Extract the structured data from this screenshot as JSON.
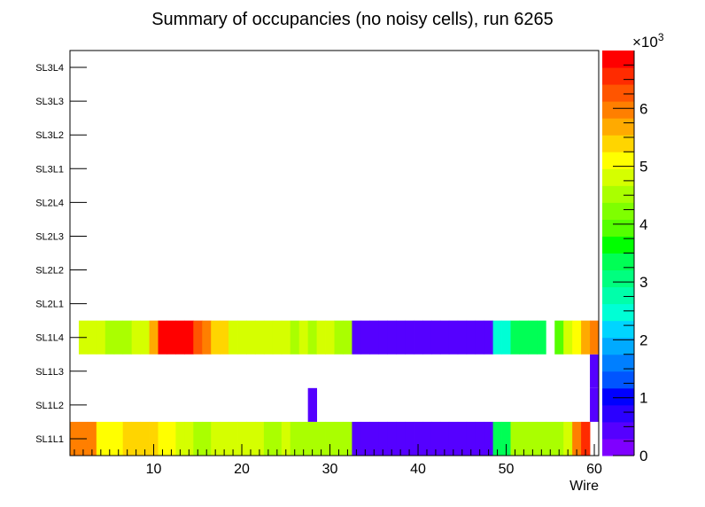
{
  "chart_data": {
    "type": "heatmap",
    "title": "Summary of occupancies (no noisy cells), run 6265",
    "xlabel": "Wire",
    "xlim": [
      0.5,
      60.5
    ],
    "x_ticks": [
      "10",
      "20",
      "30",
      "40",
      "50",
      "60"
    ],
    "rows": [
      "SL1L1",
      "SL1L2",
      "SL1L3",
      "SL1L4",
      "SL2L1",
      "SL2L2",
      "SL2L3",
      "SL2L4",
      "SL3L1",
      "SL3L2",
      "SL3L3",
      "SL3L4"
    ],
    "z_range": [
      0,
      7000
    ],
    "z_multiplier_label": "×10",
    "z_multiplier_exponent": "3",
    "z_ticks": [
      "0",
      "1",
      "2",
      "3",
      "4",
      "5",
      "6"
    ],
    "palette": [
      "#7f00ff",
      "#5500ff",
      "#2b00ff",
      "#0000ff",
      "#0055ff",
      "#007fff",
      "#00aaff",
      "#00d5ff",
      "#00ffd5",
      "#00ffaa",
      "#00ff7f",
      "#00ff55",
      "#00ff00",
      "#55ff00",
      "#7fff00",
      "#aaff00",
      "#d5ff00",
      "#ffff00",
      "#ffd500",
      "#ffaa00",
      "#ff7f00",
      "#ff5500",
      "#ff2b00",
      "#ff0000"
    ],
    "cells": {
      "SL1L1": [
        6050,
        6050,
        5900,
        5100,
        5100,
        5100,
        5350,
        5350,
        5350,
        5350,
        5100,
        5100,
        4900,
        4700,
        4450,
        4450,
        4700,
        4700,
        4700,
        4700,
        4700,
        4700,
        4450,
        4450,
        4700,
        4450,
        4450,
        4450,
        4450,
        4450,
        4450,
        4450,
        300,
        300,
        300,
        300,
        300,
        300,
        300,
        300,
        300,
        300,
        300,
        300,
        300,
        300,
        300,
        300,
        3450,
        3450,
        4450,
        4450,
        4450,
        4450,
        4450,
        4450,
        4700,
        6050,
        6600,
        null
      ],
      "SL1L2": [
        null,
        null,
        null,
        null,
        null,
        null,
        null,
        null,
        null,
        null,
        null,
        null,
        null,
        null,
        null,
        null,
        null,
        null,
        null,
        null,
        null,
        null,
        null,
        null,
        null,
        null,
        null,
        300,
        null,
        null,
        null,
        null,
        null,
        null,
        null,
        null,
        null,
        null,
        null,
        null,
        null,
        null,
        null,
        null,
        null,
        null,
        null,
        null,
        null,
        null,
        null,
        null,
        null,
        null,
        null,
        null,
        null,
        null,
        null,
        300
      ],
      "SL1L3": [
        null,
        null,
        null,
        null,
        null,
        null,
        null,
        null,
        null,
        null,
        null,
        null,
        null,
        null,
        null,
        null,
        null,
        null,
        null,
        null,
        null,
        null,
        null,
        null,
        null,
        null,
        null,
        null,
        null,
        null,
        null,
        null,
        null,
        null,
        null,
        null,
        null,
        null,
        null,
        null,
        null,
        null,
        null,
        null,
        null,
        null,
        null,
        null,
        null,
        null,
        null,
        null,
        null,
        null,
        null,
        null,
        null,
        null,
        null,
        300
      ],
      "SL1L4": [
        null,
        4950,
        4700,
        4700,
        4450,
        4450,
        4450,
        4700,
        4950,
        5600,
        6800,
        6800,
        6800,
        6800,
        6300,
        5850,
        5350,
        5350,
        4950,
        4950,
        4950,
        4950,
        4700,
        4700,
        4700,
        4450,
        4700,
        4450,
        4700,
        4700,
        4450,
        4450,
        300,
        300,
        300,
        300,
        300,
        300,
        300,
        300,
        300,
        300,
        300,
        300,
        300,
        300,
        300,
        300,
        2600,
        2600,
        3450,
        3450,
        3450,
        3450,
        null,
        3800,
        4700,
        5050,
        5600,
        5850
      ]
    }
  }
}
